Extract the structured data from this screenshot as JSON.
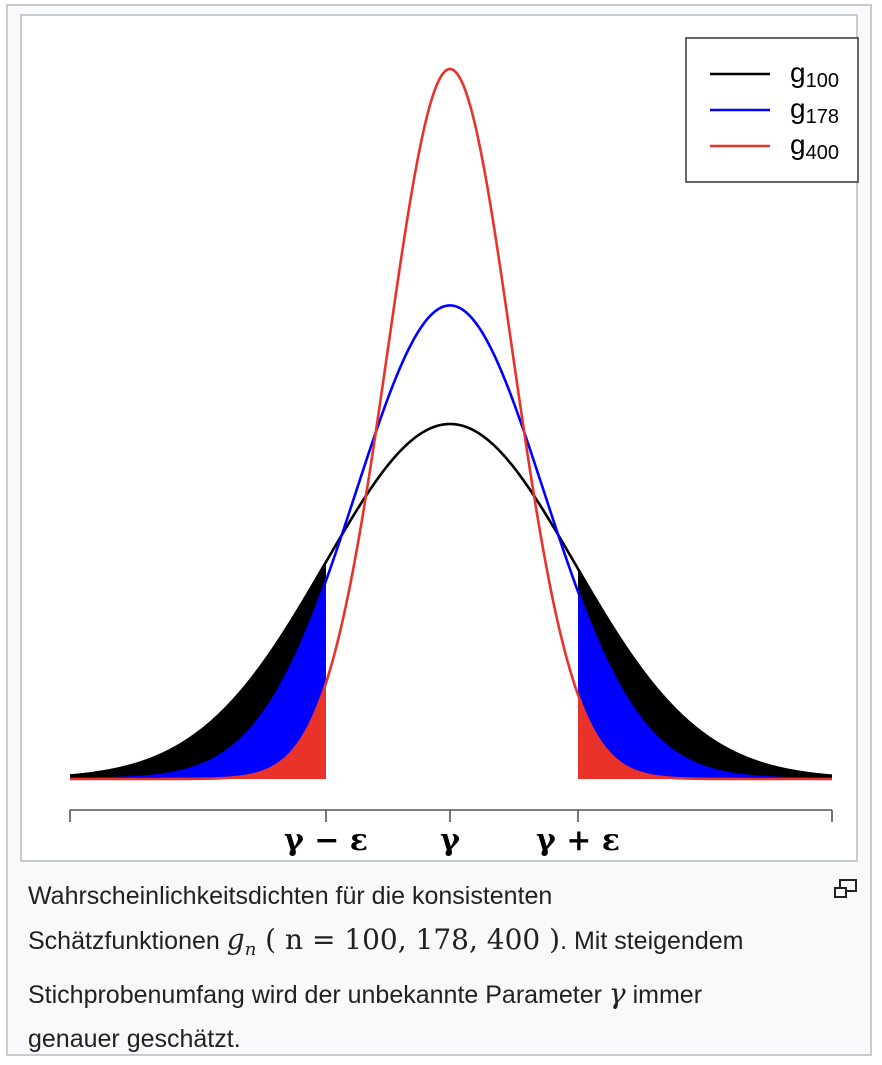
{
  "chart_data": {
    "type": "line",
    "title": "",
    "x_ticks": [
      "γ − ε",
      "γ",
      "γ + ε"
    ],
    "series": [
      {
        "name": "g100",
        "legend_base": "g",
        "legend_sub": "100",
        "color": "#000000",
        "fill": "#000000",
        "relative_peak": 0.5
      },
      {
        "name": "g178",
        "legend_base": "g",
        "legend_sub": "178",
        "color": "#0000ff",
        "fill": "#0000ff",
        "relative_peak": 0.667
      },
      {
        "name": "g400",
        "legend_base": "g",
        "legend_sub": "400",
        "color": "#e8322a",
        "fill": "#e8322a",
        "relative_peak": 1.0
      }
    ],
    "shaded_tails": "outside [γ − ε, γ + ε]",
    "grid": false,
    "legend_position": "top-right"
  },
  "caption": {
    "text1": "Wahrscheinlichkeitsdichten für die konsistenten",
    "text2": "Schätzfunktionen ",
    "math_g": "g",
    "math_n_sub": "n",
    "math_paren": " ( n = 100, 178, 400 )",
    "text3": ". Mit steigendem",
    "text4": "Stichprobenumfang wird der unbekannte Parameter ",
    "math_gamma": "γ",
    "text5": " immer",
    "text6": "genauer geschätzt."
  },
  "icons": {
    "magnify": "magnify-icon"
  }
}
